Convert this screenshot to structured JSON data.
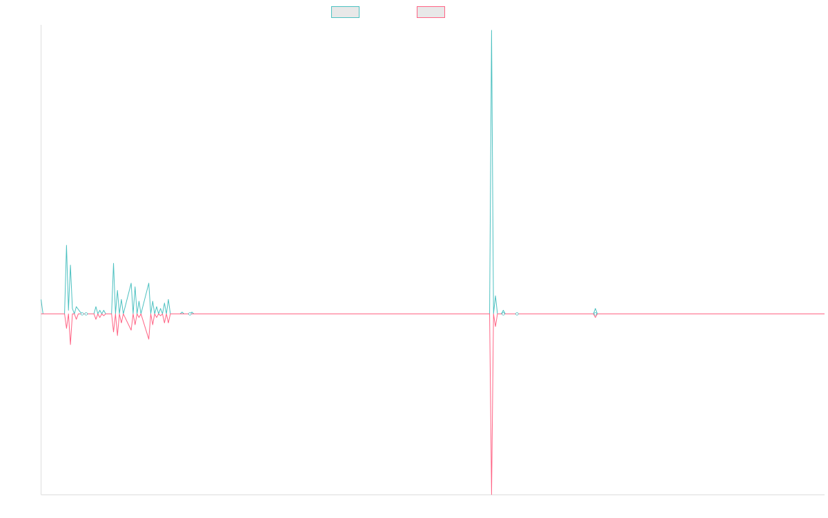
{
  "chart_data": {
    "type": "line",
    "title": "",
    "xlabel": "",
    "ylabel": "",
    "grid": false,
    "legend_position": "top-center",
    "xlim": [
      0,
      400
    ],
    "ylim": [
      -100,
      160
    ],
    "series": [
      {
        "color": "#4bc0c0",
        "fill": "#e8e8e8",
        "points": [
          [
            0,
            8
          ],
          [
            1,
            0
          ],
          [
            12,
            0
          ],
          [
            13,
            38
          ],
          [
            14,
            2
          ],
          [
            15,
            27
          ],
          [
            16,
            3
          ],
          [
            17,
            0
          ],
          [
            18,
            4
          ],
          [
            20,
            1
          ],
          [
            21,
            0
          ],
          [
            23,
            0
          ],
          [
            27,
            0
          ],
          [
            28,
            4
          ],
          [
            29,
            0
          ],
          [
            30,
            2
          ],
          [
            31,
            0
          ],
          [
            32,
            2
          ],
          [
            33,
            0
          ],
          [
            36,
            0
          ],
          [
            37,
            28
          ],
          [
            38,
            0
          ],
          [
            39,
            13
          ],
          [
            40,
            0
          ],
          [
            41,
            8
          ],
          [
            42,
            0
          ],
          [
            46,
            17
          ],
          [
            47,
            0
          ],
          [
            48,
            15
          ],
          [
            49,
            0
          ],
          [
            50,
            7
          ],
          [
            51,
            0
          ],
          [
            55,
            17
          ],
          [
            56,
            0
          ],
          [
            57,
            7
          ],
          [
            58,
            0
          ],
          [
            59,
            4
          ],
          [
            60,
            0
          ],
          [
            61,
            3
          ],
          [
            62,
            0
          ],
          [
            63,
            6
          ],
          [
            64,
            0
          ],
          [
            65,
            8
          ],
          [
            66,
            0
          ],
          [
            71,
            0
          ],
          [
            72,
            1
          ],
          [
            73,
            0
          ],
          [
            76,
            0
          ],
          [
            77,
            1
          ],
          [
            78,
            0
          ],
          [
            229,
            0
          ],
          [
            230,
            157
          ],
          [
            231,
            0
          ],
          [
            232,
            10
          ],
          [
            233,
            0
          ],
          [
            235,
            0
          ],
          [
            236,
            2
          ],
          [
            237,
            0
          ],
          [
            239,
            0
          ],
          [
            243,
            0
          ],
          [
            282,
            0
          ],
          [
            283,
            3
          ],
          [
            284,
            0
          ],
          [
            400,
            0
          ]
        ]
      },
      {
        "color": "#ff6384",
        "fill": "#e8e8e8",
        "points": [
          [
            0,
            0
          ],
          [
            12,
            0
          ],
          [
            13,
            -8
          ],
          [
            14,
            0
          ],
          [
            15,
            -17
          ],
          [
            16,
            0
          ],
          [
            17,
            0
          ],
          [
            18,
            -3
          ],
          [
            19,
            0
          ],
          [
            21,
            0
          ],
          [
            23,
            0
          ],
          [
            27,
            0
          ],
          [
            28,
            -3
          ],
          [
            29,
            0
          ],
          [
            30,
            -2
          ],
          [
            31,
            0
          ],
          [
            32,
            -1
          ],
          [
            33,
            0
          ],
          [
            36,
            0
          ],
          [
            37,
            -10
          ],
          [
            38,
            0
          ],
          [
            39,
            -12
          ],
          [
            40,
            0
          ],
          [
            41,
            -5
          ],
          [
            42,
            0
          ],
          [
            46,
            -9
          ],
          [
            47,
            0
          ],
          [
            48,
            -6
          ],
          [
            49,
            0
          ],
          [
            50,
            -2
          ],
          [
            51,
            0
          ],
          [
            55,
            -14
          ],
          [
            56,
            0
          ],
          [
            57,
            -6
          ],
          [
            58,
            0
          ],
          [
            59,
            -2
          ],
          [
            60,
            0
          ],
          [
            61,
            -1
          ],
          [
            62,
            0
          ],
          [
            63,
            -5
          ],
          [
            64,
            0
          ],
          [
            65,
            -5
          ],
          [
            66,
            0
          ],
          [
            229,
            0
          ],
          [
            230,
            -100
          ],
          [
            231,
            0
          ],
          [
            232,
            -7
          ],
          [
            233,
            0
          ],
          [
            282,
            0
          ],
          [
            283,
            -2
          ],
          [
            284,
            0
          ],
          [
            400,
            0
          ]
        ]
      }
    ]
  }
}
